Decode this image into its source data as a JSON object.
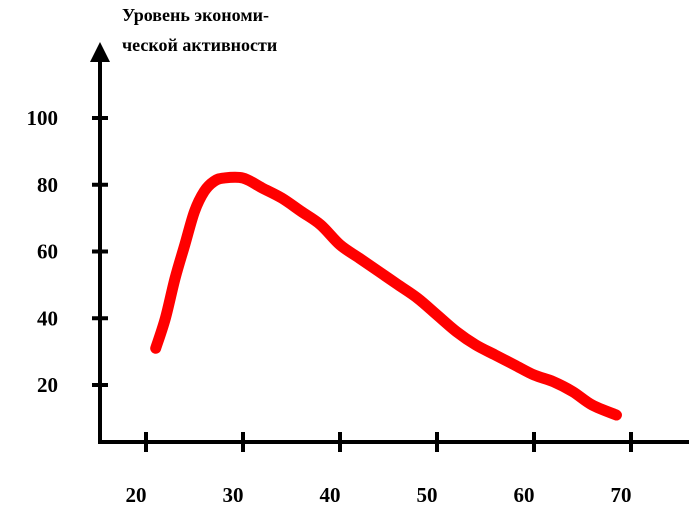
{
  "chart_data": {
    "type": "line",
    "title": "",
    "xlabel": "",
    "ylabel_lines": [
      "Уровень экономи-",
      "ческой активности"
    ],
    "xlim": [
      15,
      75
    ],
    "ylim": [
      0,
      110
    ],
    "xticks": [
      20,
      30,
      40,
      50,
      60,
      70
    ],
    "yticks": [
      20,
      40,
      60,
      80,
      100
    ],
    "grid": false,
    "line_color": "#ff0000",
    "axis_color": "#000000",
    "series": [
      {
        "x": [
          21,
          22,
          23,
          24,
          25,
          26,
          27,
          28,
          30,
          32,
          34,
          36,
          38,
          40,
          42,
          44,
          46,
          48,
          50,
          52,
          54,
          56,
          58,
          60,
          62,
          64,
          66,
          68.5
        ],
        "y": [
          31,
          40,
          52,
          62,
          72,
          78,
          81,
          82,
          82,
          79,
          76,
          72,
          68,
          62,
          58,
          54,
          50,
          46,
          41,
          36,
          32,
          29,
          26,
          23,
          21,
          18,
          14,
          11
        ]
      }
    ]
  }
}
